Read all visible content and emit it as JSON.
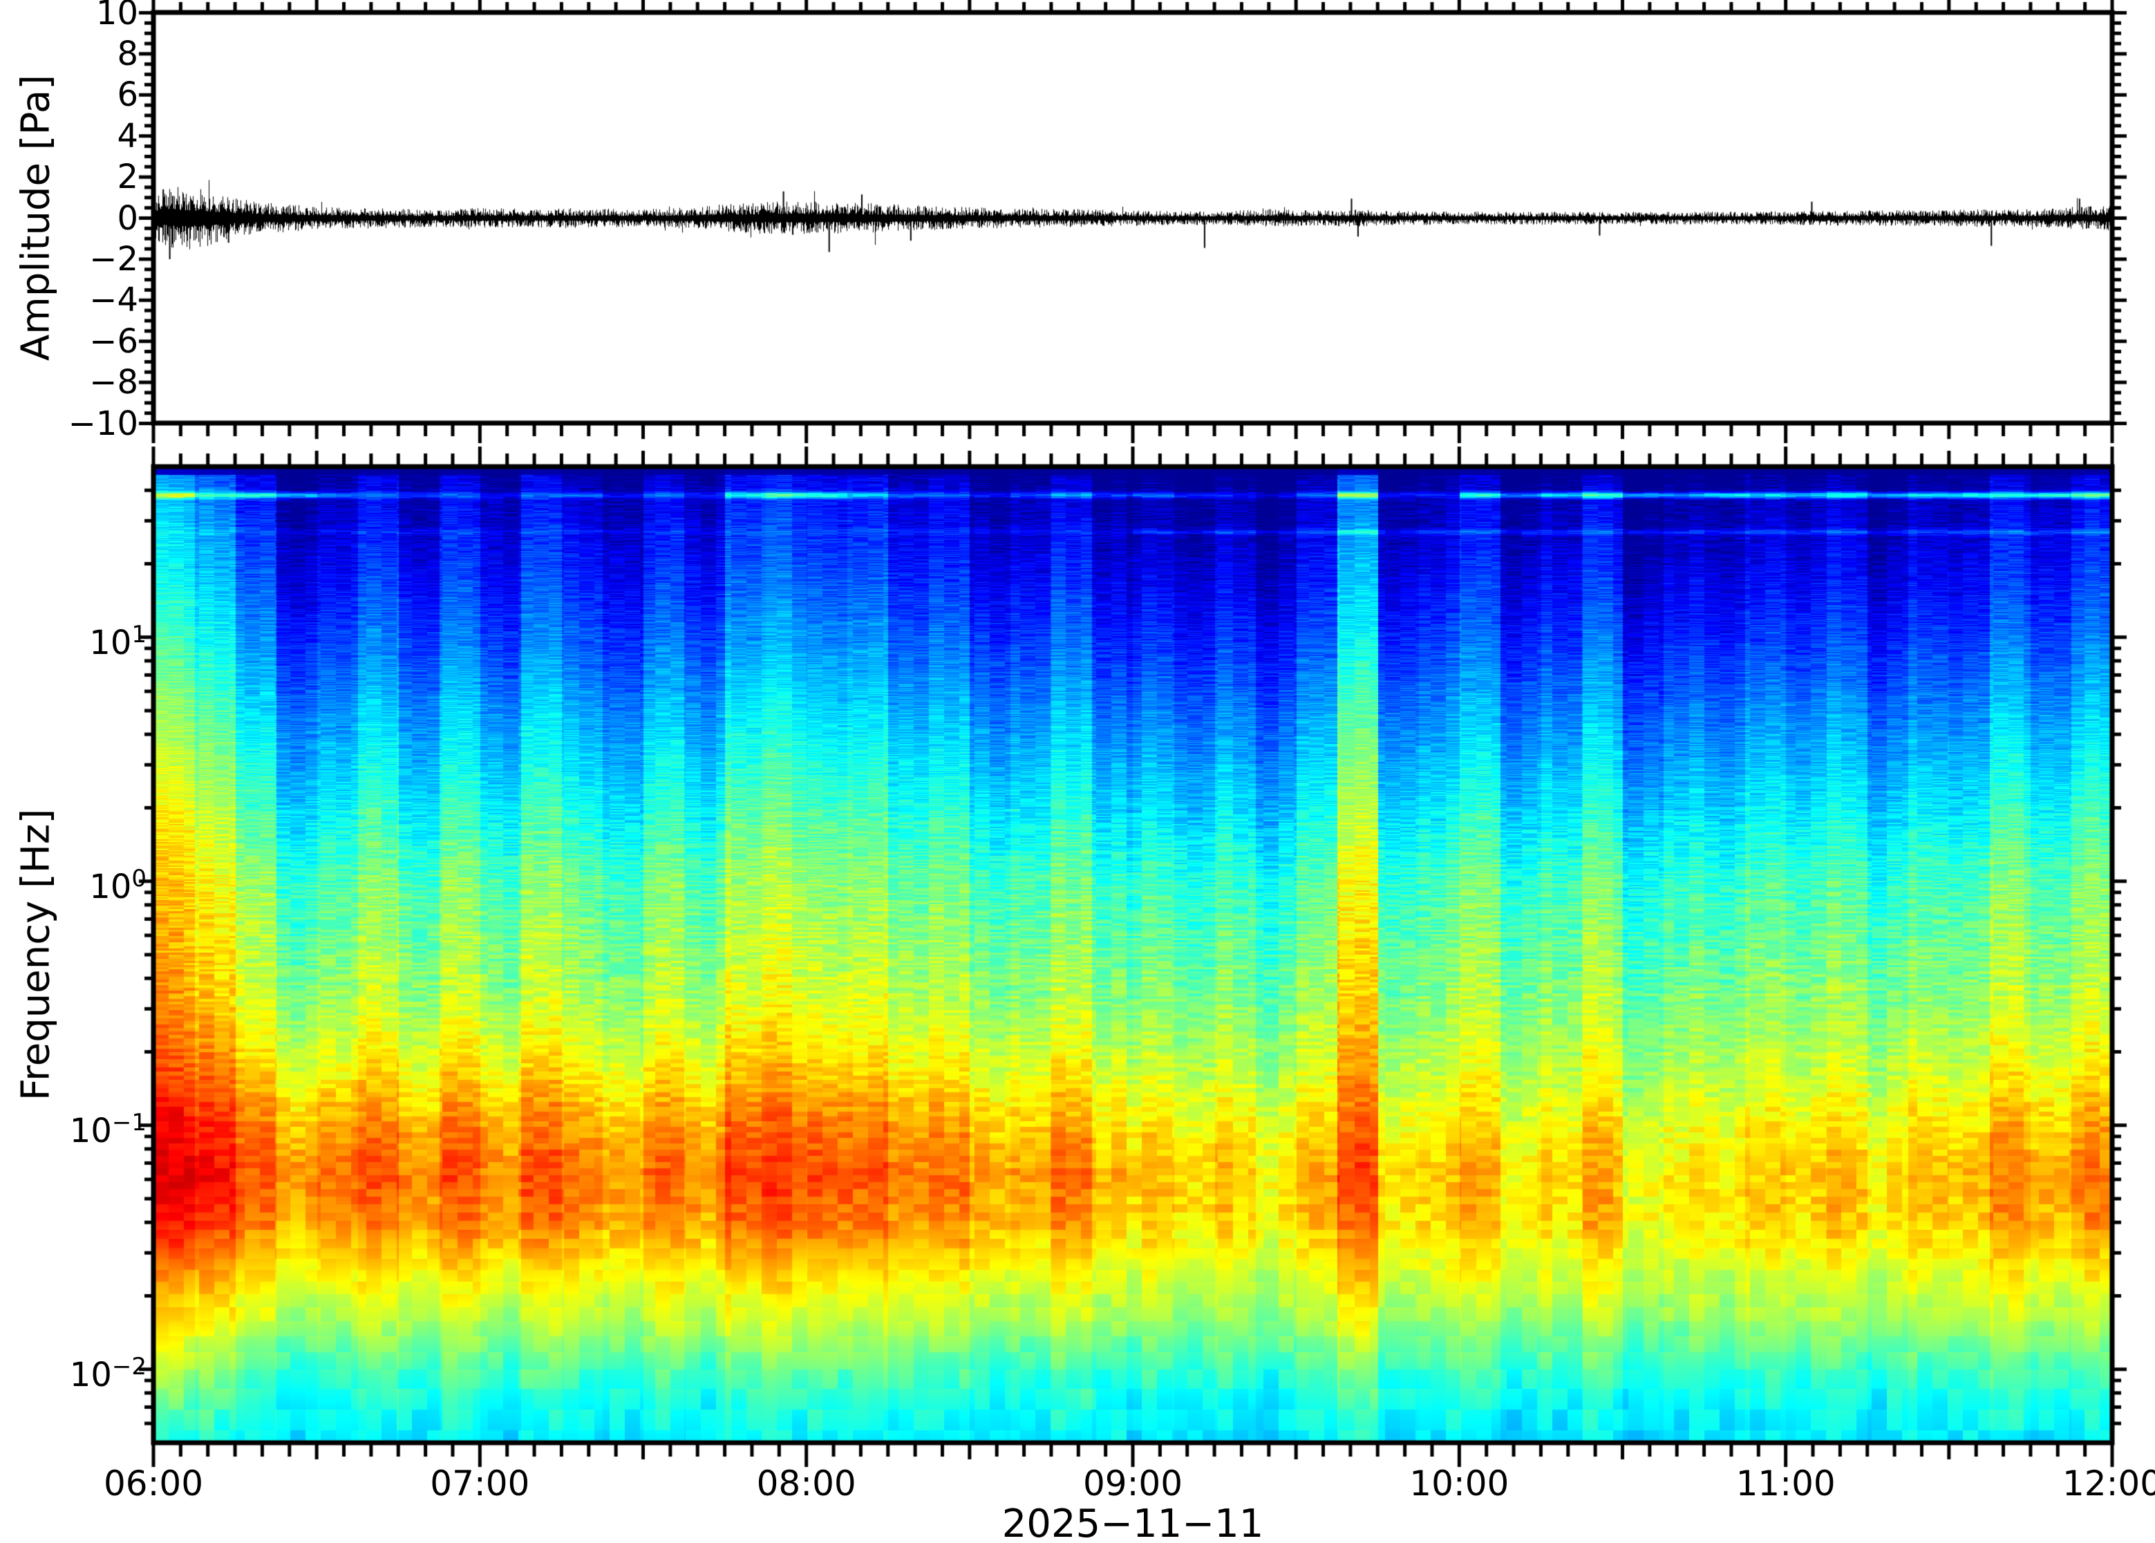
{
  "figure": {
    "background": "#ffffff",
    "frame_color": "#000000",
    "waveform_color": "#000000",
    "palette": "jet"
  },
  "top_panel": {
    "ylabel": "Amplitude [Pa]",
    "ylim": [
      -10,
      10
    ],
    "ytick_labels": [
      "10",
      "8",
      "6",
      "4",
      "2",
      "0",
      "−2",
      "−4",
      "−6",
      "−8",
      "−10"
    ],
    "ytick_values": [
      10,
      8,
      6,
      4,
      2,
      0,
      -2,
      -4,
      -6,
      -8,
      -10
    ]
  },
  "bottom_panel": {
    "ylabel": "Frequency [Hz]",
    "ylim_hz": [
      0.005,
      50
    ],
    "ytick_labels": [
      {
        "base": "10",
        "exp": "1"
      },
      {
        "base": "10",
        "exp": "0"
      },
      {
        "base": "10",
        "exp": "−1"
      },
      {
        "base": "10",
        "exp": "−2"
      }
    ],
    "ytick_values": [
      10,
      1,
      0.1,
      0.01
    ]
  },
  "time_axis": {
    "tick_labels": [
      "06:00",
      "07:00",
      "08:00",
      "09:00",
      "10:00",
      "11:00",
      "12:00"
    ],
    "tick_hours": [
      6,
      7,
      8,
      9,
      10,
      11,
      12
    ],
    "xlabel": "2025−11−11"
  },
  "chart_data": [
    {
      "type": "line",
      "title": "",
      "ylabel": "Amplitude [Pa]",
      "ylim": [
        -10,
        10
      ],
      "x_range_hours": [
        6,
        12
      ],
      "x_tick_labels": [
        "06:00",
        "07:00",
        "08:00",
        "09:00",
        "10:00",
        "11:00",
        "12:00"
      ],
      "series_name": "infrasound pressure trace",
      "envelope_interval_min": 5,
      "envelope_pa": [
        0.9,
        1.3,
        1.1,
        0.8,
        0.6,
        0.55,
        0.45,
        0.4,
        0.4,
        0.38,
        0.35,
        0.35,
        0.4,
        0.38,
        0.35,
        0.4,
        0.38,
        0.36,
        0.35,
        0.38,
        0.45,
        0.55,
        0.6,
        0.65,
        0.65,
        0.6,
        0.62,
        0.55,
        0.5,
        0.45,
        0.42,
        0.4,
        0.38,
        0.36,
        0.35,
        0.33,
        0.3,
        0.28,
        0.27,
        0.26,
        0.3,
        0.35,
        0.32,
        0.3,
        0.35,
        0.3,
        0.28,
        0.27,
        0.26,
        0.25,
        0.25,
        0.26,
        0.25,
        0.25,
        0.25,
        0.24,
        0.25,
        0.26,
        0.25,
        0.26,
        0.27,
        0.28,
        0.3,
        0.3,
        0.32,
        0.3,
        0.32,
        0.35,
        0.33,
        0.35,
        0.4,
        0.45,
        0.5
      ],
      "spikes_hour_amp_pa": [
        [
          6.03,
          1.4
        ],
        [
          6.05,
          -2.0
        ],
        [
          6.23,
          -1.2
        ],
        [
          7.93,
          1.3
        ],
        [
          8.07,
          -1.65
        ],
        [
          8.17,
          1.15
        ],
        [
          8.32,
          -1.1
        ],
        [
          9.22,
          -1.45
        ],
        [
          9.67,
          0.95
        ],
        [
          9.69,
          -0.9
        ],
        [
          10.43,
          -0.85
        ],
        [
          11.08,
          0.8
        ],
        [
          11.63,
          -1.35
        ],
        [
          11.9,
          0.95
        ]
      ]
    },
    {
      "type": "heatmap",
      "title": "",
      "ylabel": "Frequency [Hz]",
      "xlabel": "2025−11−11",
      "x_range_hours": [
        6,
        12
      ],
      "y_range_hz": [
        0.005,
        50
      ],
      "y_scale": "log",
      "palette": "jet",
      "value_units": "normalized spectral power (0-1)",
      "n_time_columns": 48,
      "freq_profile_log10hz_value": [
        [
          1.7,
          0.05
        ],
        [
          1.55,
          0.1
        ],
        [
          1.3,
          0.15
        ],
        [
          1.0,
          0.22
        ],
        [
          0.7,
          0.3
        ],
        [
          0.3,
          0.4
        ],
        [
          0.0,
          0.48
        ],
        [
          -0.5,
          0.55
        ],
        [
          -0.8,
          0.62
        ],
        [
          -1.0,
          0.68
        ],
        [
          -1.2,
          0.72
        ],
        [
          -1.4,
          0.7
        ],
        [
          -1.6,
          0.62
        ],
        [
          -1.8,
          0.55
        ],
        [
          -2.0,
          0.45
        ],
        [
          -2.15,
          0.4
        ],
        [
          -2.3,
          0.37
        ]
      ],
      "column_offsets": [
        0.17,
        0.12,
        0.04,
        -0.05,
        -0.02,
        0.03,
        -0.04,
        0.02,
        -0.03,
        0.04,
        -0.01,
        -0.05,
        0.02,
        -0.03,
        0.05,
        0.06,
        0.03,
        0.05,
        -0.02,
        0.02,
        -0.05,
        -0.02,
        0.01,
        -0.06,
        -0.04,
        -0.07,
        -0.03,
        -0.08,
        -0.02,
        0.13,
        -0.05,
        -0.03,
        0.02,
        -0.06,
        -0.03,
        0.01,
        -0.08,
        -0.04,
        -0.06,
        -0.02,
        -0.05,
        -0.01,
        -0.07,
        -0.03,
        -0.05,
        0.02,
        -0.02,
        0.03
      ],
      "microbarom_band_offsets": [
        0.05,
        0.05,
        0.04,
        0.05,
        0.06,
        0.05,
        0.04,
        0.05,
        0.04,
        0.05,
        0.04,
        0.03,
        0.04,
        0.03,
        0.05,
        0.05,
        0.05,
        0.04,
        0.03,
        0.04,
        0.02,
        0.02,
        0.03,
        0.01,
        0.0,
        -0.01,
        0.0,
        -0.02,
        -0.01,
        0.0,
        -0.02,
        -0.02,
        -0.01,
        -0.03,
        -0.02,
        -0.01,
        -0.04,
        -0.03,
        -0.03,
        -0.02,
        -0.02,
        -0.01,
        -0.02,
        0.0,
        -0.01,
        0.01,
        0.01,
        0.02
      ],
      "spectral_lines": [
        {
          "freq_hz": 38,
          "strength_by_column": [
            0.3,
            0.2,
            0.28,
            0.3,
            0.18,
            0.12,
            0.15,
            0.1,
            0.08,
            0.1,
            0.15,
            0.1,
            0.12,
            0.1,
            0.25,
            0.3,
            0.3,
            0.2,
            0.15,
            0.12,
            0.1,
            0.15,
            0.2,
            0.15,
            0.2,
            0.15,
            0.1,
            0.12,
            0.15,
            0.3,
            0.12,
            0.1,
            0.3,
            0.25,
            0.3,
            0.35,
            0.3,
            0.25,
            0.35,
            0.3,
            0.3,
            0.35,
            0.3,
            0.32,
            0.35,
            0.3,
            0.35,
            0.38
          ]
        },
        {
          "freq_hz": 27,
          "strength_by_column": [
            0.04,
            0.04,
            0.04,
            0.04,
            0.04,
            0.04,
            0.04,
            0.04,
            0.04,
            0.04,
            0.04,
            0.04,
            0.04,
            0.04,
            0.04,
            0.04,
            0.04,
            0.04,
            0.04,
            0.04,
            0.04,
            0.04,
            0.04,
            0.04,
            0.1,
            0.1,
            0.12,
            0.1,
            0.1,
            0.14,
            0.1,
            0.1,
            0.1,
            0.12,
            0.1,
            0.1,
            0.12,
            0.1,
            0.1,
            0.1,
            0.1,
            0.12,
            0.1,
            0.1,
            0.12,
            0.1,
            0.1,
            0.12
          ]
        }
      ]
    }
  ]
}
